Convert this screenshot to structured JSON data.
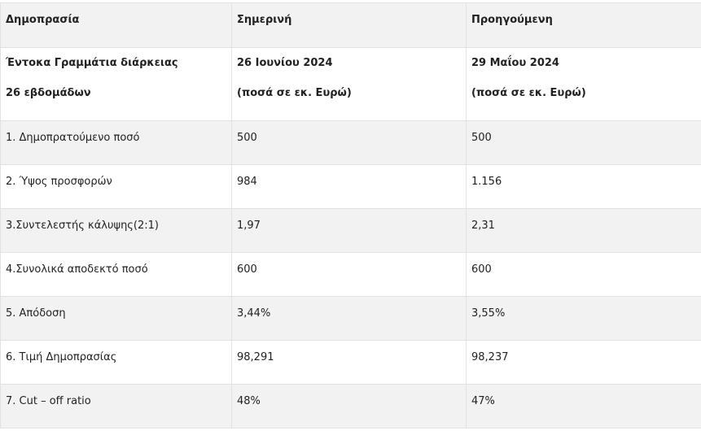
{
  "table": {
    "header": [
      "Δημοπρασία",
      "Σημερινή",
      "Προηγούμενη"
    ],
    "subheader": [
      {
        "line1": "Έντοκα Γραμμάτια διάρκειας",
        "line2": "26 εβδομάδων"
      },
      {
        "line1": "26 Ιουνίου 2024",
        "line2": "(ποσά σε εκ. Ευρώ)"
      },
      {
        "line1": "29 Μαΐου 2024",
        "line2": "(ποσά σε εκ. Ευρώ)"
      }
    ],
    "rows": [
      [
        "1. Δημοπρατούμενο ποσό",
        "500",
        "500"
      ],
      [
        "2. Ύψος προσφορών",
        "984",
        "1.156"
      ],
      [
        "3.Συντελεστής κάλυψης(2:1)",
        "1,97",
        "2,31"
      ],
      [
        "4.Συνολικά αποδεκτό ποσό",
        "600",
        "600"
      ],
      [
        "5. Απόδοση",
        "3,44%",
        "3,55%"
      ],
      [
        "6. Τιμή Δημοπρασίας",
        "98,291",
        "98,237"
      ],
      [
        "7. Cut – off ratio",
        "48%",
        "47%"
      ]
    ]
  }
}
